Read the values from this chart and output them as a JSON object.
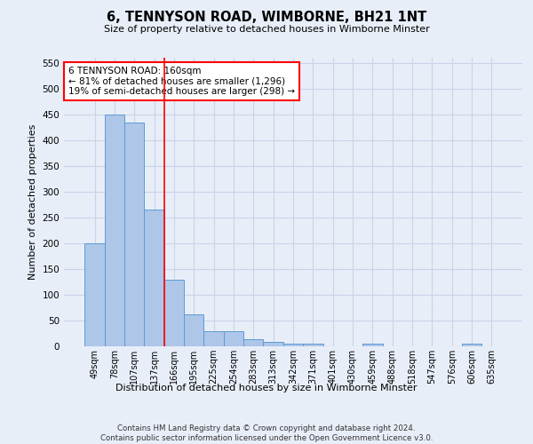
{
  "title": "6, TENNYSON ROAD, WIMBORNE, BH21 1NT",
  "subtitle": "Size of property relative to detached houses in Wimborne Minster",
  "xlabel": "Distribution of detached houses by size in Wimborne Minster",
  "ylabel": "Number of detached properties",
  "footer_line1": "Contains HM Land Registry data © Crown copyright and database right 2024.",
  "footer_line2": "Contains public sector information licensed under the Open Government Licence v3.0.",
  "categories": [
    "49sqm",
    "78sqm",
    "107sqm",
    "137sqm",
    "166sqm",
    "195sqm",
    "225sqm",
    "254sqm",
    "283sqm",
    "313sqm",
    "342sqm",
    "371sqm",
    "401sqm",
    "430sqm",
    "459sqm",
    "488sqm",
    "518sqm",
    "547sqm",
    "576sqm",
    "606sqm",
    "635sqm"
  ],
  "values": [
    200,
    450,
    435,
    265,
    130,
    62,
    29,
    29,
    14,
    8,
    5,
    5,
    0,
    0,
    5,
    0,
    0,
    0,
    0,
    5,
    0
  ],
  "bar_color": "#aec6e8",
  "bar_edge_color": "#5b9bd5",
  "grid_color": "#c8d4e8",
  "background_color": "#e8eef8",
  "red_line_x": 3.5,
  "annotation_text": "6 TENNYSON ROAD: 160sqm\n← 81% of detached houses are smaller (1,296)\n19% of semi-detached houses are larger (298) →",
  "annotation_box_color": "white",
  "annotation_box_edge": "red",
  "ylim": [
    0,
    560
  ],
  "yticks": [
    0,
    50,
    100,
    150,
    200,
    250,
    300,
    350,
    400,
    450,
    500,
    550
  ]
}
